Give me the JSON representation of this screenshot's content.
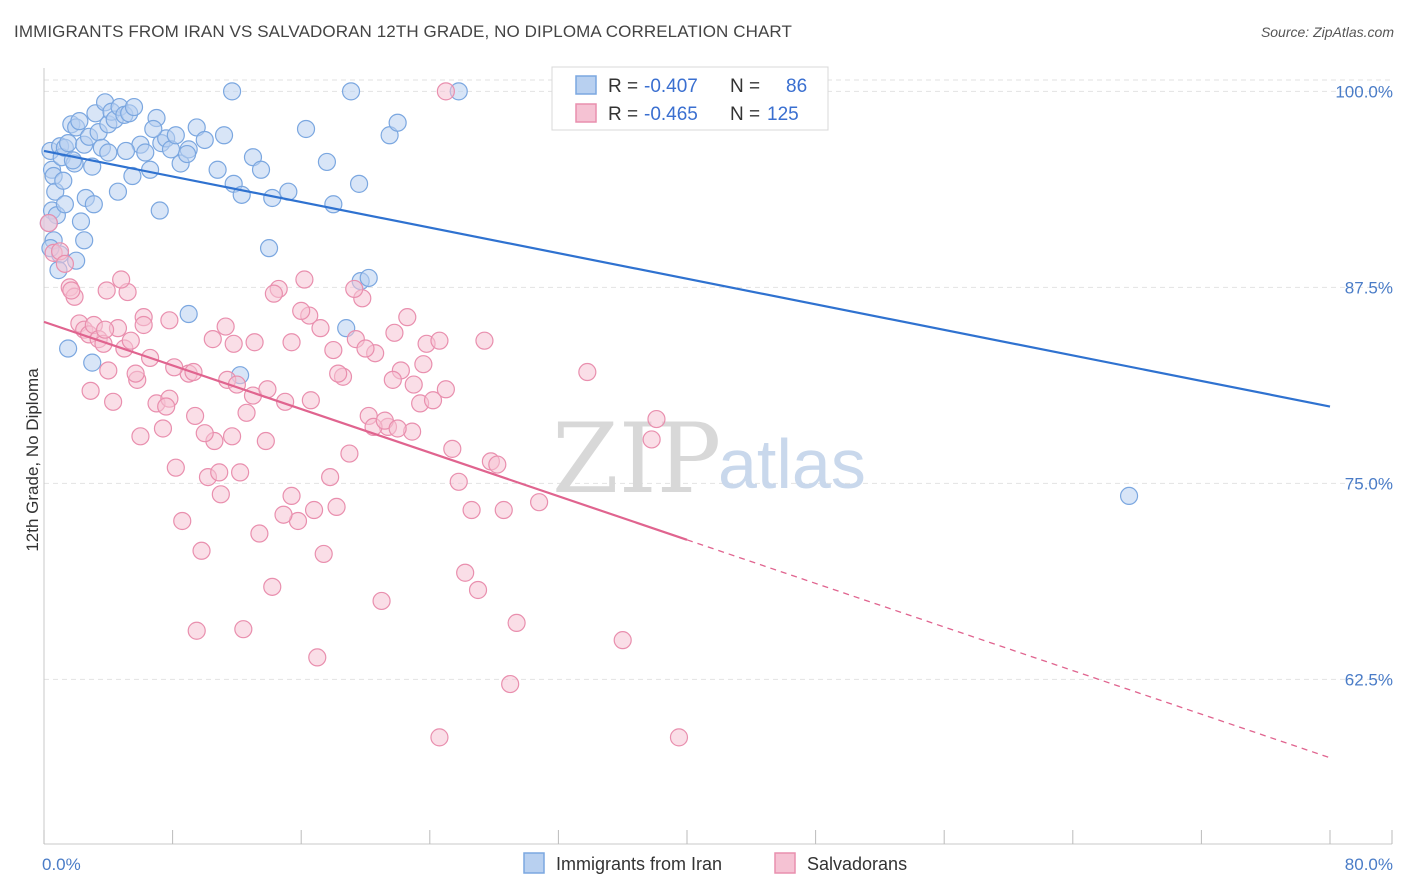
{
  "header": {
    "title": "IMMIGRANTS FROM IRAN VS SALVADORAN 12TH GRADE, NO DIPLOMA CORRELATION CHART",
    "source": "Source: ZipAtlas.com"
  },
  "watermark": {
    "zip": "ZIP",
    "atlas": "atlas"
  },
  "legend_top": {
    "rows": [
      {
        "r_label": "R =",
        "r_value": "-0.407",
        "n_label": "N =",
        "n_value": "86"
      },
      {
        "r_label": "R =",
        "r_value": "-0.465",
        "n_label": "N =",
        "n_value": "125"
      }
    ]
  },
  "chart_data": {
    "type": "scatter",
    "title": "IMMIGRANTS FROM IRAN VS SALVADORAN 12TH GRADE, NO DIPLOMA CORRELATION CHART",
    "xlabel": "",
    "ylabel": "12th Grade, No Diploma",
    "xlim": [
      0,
      80
    ],
    "ylim": [
      52,
      102
    ],
    "x_tick_labels": [
      "0.0%",
      "80.0%"
    ],
    "y_ticks": [
      62.5,
      75.0,
      87.5,
      100.0
    ],
    "y_tick_labels": [
      "62.5%",
      "75.0%",
      "87.5%",
      "100.0%"
    ],
    "grid": true,
    "legend_position": "top-center",
    "series": [
      {
        "name": "Immigrants from Iran",
        "color": "#7ba7e0",
        "fill": "#b8d0f0",
        "trend": {
          "x": [
            0,
            80
          ],
          "y": [
            96.2,
            79.9
          ],
          "style": "solid",
          "color": "#2f72d0"
        },
        "points": [
          [
            0.4,
            96.2
          ],
          [
            0.5,
            95.0
          ],
          [
            0.6,
            94.6
          ],
          [
            0.7,
            93.6
          ],
          [
            0.5,
            92.4
          ],
          [
            0.8,
            92.1
          ],
          [
            1.0,
            96.5
          ],
          [
            1.1,
            95.8
          ],
          [
            1.3,
            96.4
          ],
          [
            1.5,
            96.7
          ],
          [
            1.7,
            97.9
          ],
          [
            1.9,
            95.4
          ],
          [
            2.0,
            97.7
          ],
          [
            2.2,
            98.1
          ],
          [
            2.5,
            96.6
          ],
          [
            2.8,
            97.1
          ],
          [
            3.0,
            95.2
          ],
          [
            3.2,
            98.6
          ],
          [
            3.4,
            97.4
          ],
          [
            3.6,
            96.4
          ],
          [
            3.8,
            99.3
          ],
          [
            4.0,
            97.9
          ],
          [
            4.2,
            98.7
          ],
          [
            4.4,
            98.2
          ],
          [
            4.7,
            99.0
          ],
          [
            5.0,
            98.5
          ],
          [
            5.3,
            98.6
          ],
          [
            5.6,
            99.0
          ],
          [
            6.0,
            96.6
          ],
          [
            6.3,
            96.1
          ],
          [
            6.6,
            95.0
          ],
          [
            7.0,
            98.3
          ],
          [
            7.3,
            96.7
          ],
          [
            7.6,
            97.0
          ],
          [
            7.9,
            96.3
          ],
          [
            8.2,
            97.2
          ],
          [
            8.5,
            95.4
          ],
          [
            9.0,
            96.3
          ],
          [
            9.5,
            97.7
          ],
          [
            10.0,
            96.9
          ],
          [
            10.8,
            95.0
          ],
          [
            11.2,
            97.2
          ],
          [
            11.8,
            94.1
          ],
          [
            12.3,
            93.4
          ],
          [
            13.0,
            95.8
          ],
          [
            13.5,
            95.0
          ],
          [
            14.2,
            93.2
          ],
          [
            15.2,
            93.6
          ],
          [
            16.3,
            97.6
          ],
          [
            17.6,
            95.5
          ],
          [
            18.0,
            92.8
          ],
          [
            19.1,
            100.0
          ],
          [
            19.6,
            94.1
          ],
          [
            21.5,
            97.2
          ],
          [
            22.0,
            98.0
          ],
          [
            25.8,
            100.0
          ],
          [
            11.7,
            100.0
          ],
          [
            1.8,
            95.6
          ],
          [
            2.6,
            93.2
          ],
          [
            3.1,
            92.8
          ],
          [
            2.3,
            91.7
          ],
          [
            2.5,
            90.5
          ],
          [
            1.3,
            92.8
          ],
          [
            4.6,
            93.6
          ],
          [
            5.5,
            94.6
          ],
          [
            7.2,
            92.4
          ],
          [
            9.0,
            85.8
          ],
          [
            12.2,
            81.9
          ],
          [
            14.0,
            90.0
          ],
          [
            18.8,
            84.9
          ],
          [
            19.7,
            87.9
          ],
          [
            20.2,
            88.1
          ],
          [
            1.5,
            83.6
          ],
          [
            3.0,
            82.7
          ],
          [
            1.0,
            89.6
          ],
          [
            2.0,
            89.2
          ],
          [
            0.9,
            88.6
          ],
          [
            0.3,
            91.6
          ],
          [
            0.6,
            90.5
          ],
          [
            1.2,
            94.3
          ],
          [
            4.0,
            96.1
          ],
          [
            5.1,
            96.2
          ],
          [
            6.8,
            97.6
          ],
          [
            8.9,
            96.0
          ],
          [
            67.5,
            74.2
          ],
          [
            0.4,
            90.0
          ]
        ]
      },
      {
        "name": "Salvadorans",
        "color": "#e98fae",
        "fill": "#f5c2d3",
        "trend": {
          "x": [
            0,
            40
          ],
          "y": [
            85.3,
            71.4
          ],
          "style": "solid",
          "color": "#e0648f",
          "dash_x": [
            40,
            80
          ],
          "dash_y": [
            71.4,
            57.5
          ]
        },
        "points": [
          [
            0.3,
            91.6
          ],
          [
            0.6,
            89.7
          ],
          [
            1.0,
            89.8
          ],
          [
            1.3,
            89.0
          ],
          [
            1.6,
            87.5
          ],
          [
            1.9,
            86.9
          ],
          [
            2.2,
            85.2
          ],
          [
            2.5,
            84.8
          ],
          [
            2.8,
            84.5
          ],
          [
            3.1,
            85.1
          ],
          [
            3.4,
            84.2
          ],
          [
            3.7,
            83.9
          ],
          [
            4.0,
            82.2
          ],
          [
            4.3,
            80.2
          ],
          [
            4.6,
            84.9
          ],
          [
            5.0,
            83.6
          ],
          [
            5.4,
            84.1
          ],
          [
            5.8,
            81.6
          ],
          [
            6.2,
            85.6
          ],
          [
            6.6,
            83.0
          ],
          [
            7.0,
            80.1
          ],
          [
            7.4,
            78.5
          ],
          [
            7.8,
            80.4
          ],
          [
            8.2,
            76.0
          ],
          [
            8.6,
            72.6
          ],
          [
            9.0,
            82.0
          ],
          [
            9.4,
            79.3
          ],
          [
            9.8,
            70.7
          ],
          [
            10.2,
            75.4
          ],
          [
            10.6,
            77.7
          ],
          [
            11.0,
            74.3
          ],
          [
            11.4,
            81.6
          ],
          [
            11.8,
            83.9
          ],
          [
            12.2,
            75.7
          ],
          [
            12.6,
            79.5
          ],
          [
            13.0,
            80.6
          ],
          [
            13.4,
            71.8
          ],
          [
            13.8,
            77.7
          ],
          [
            14.2,
            68.4
          ],
          [
            14.6,
            87.4
          ],
          [
            15.0,
            80.2
          ],
          [
            15.4,
            74.2
          ],
          [
            15.8,
            72.6
          ],
          [
            16.2,
            88.0
          ],
          [
            16.6,
            80.3
          ],
          [
            17.0,
            63.9
          ],
          [
            17.4,
            70.5
          ],
          [
            17.8,
            75.4
          ],
          [
            18.2,
            73.5
          ],
          [
            18.6,
            81.8
          ],
          [
            19.0,
            76.9
          ],
          [
            19.4,
            84.2
          ],
          [
            19.8,
            86.8
          ],
          [
            20.2,
            79.3
          ],
          [
            20.6,
            83.3
          ],
          [
            21.0,
            67.5
          ],
          [
            21.4,
            78.6
          ],
          [
            21.8,
            84.6
          ],
          [
            22.2,
            82.2
          ],
          [
            22.6,
            85.6
          ],
          [
            23.0,
            81.3
          ],
          [
            23.4,
            80.1
          ],
          [
            23.8,
            83.9
          ],
          [
            24.2,
            80.3
          ],
          [
            24.6,
            84.1
          ],
          [
            25.0,
            81.0
          ],
          [
            25.4,
            77.2
          ],
          [
            25.8,
            75.1
          ],
          [
            26.2,
            69.3
          ],
          [
            26.6,
            73.3
          ],
          [
            27.0,
            68.2
          ],
          [
            27.4,
            84.1
          ],
          [
            27.8,
            76.4
          ],
          [
            28.2,
            76.2
          ],
          [
            28.6,
            73.3
          ],
          [
            29.0,
            62.2
          ],
          [
            29.4,
            66.1
          ],
          [
            30.8,
            73.8
          ],
          [
            33.8,
            82.1
          ],
          [
            36.0,
            65.0
          ],
          [
            37.8,
            77.8
          ],
          [
            38.1,
            79.1
          ],
          [
            39.5,
            58.8
          ],
          [
            25.0,
            100.0
          ],
          [
            24.6,
            58.8
          ],
          [
            3.8,
            84.8
          ],
          [
            5.2,
            87.2
          ],
          [
            6.2,
            85.1
          ],
          [
            7.8,
            85.4
          ],
          [
            9.3,
            82.1
          ],
          [
            10.5,
            84.2
          ],
          [
            11.3,
            85.0
          ],
          [
            12.0,
            81.3
          ],
          [
            13.1,
            84.0
          ],
          [
            14.3,
            87.1
          ],
          [
            15.4,
            84.0
          ],
          [
            16.5,
            85.7
          ],
          [
            17.2,
            84.9
          ],
          [
            18.0,
            83.5
          ],
          [
            19.3,
            87.4
          ],
          [
            20.5,
            78.6
          ],
          [
            21.7,
            81.6
          ],
          [
            22.9,
            78.3
          ],
          [
            23.6,
            82.6
          ],
          [
            4.8,
            88.0
          ],
          [
            6.0,
            78.0
          ],
          [
            8.1,
            82.4
          ],
          [
            10.0,
            78.2
          ],
          [
            11.7,
            78.0
          ],
          [
            13.9,
            81.0
          ],
          [
            16.0,
            86.0
          ],
          [
            18.3,
            82.0
          ],
          [
            20.0,
            83.6
          ],
          [
            21.2,
            79.0
          ],
          [
            2.9,
            80.9
          ],
          [
            3.9,
            87.3
          ],
          [
            5.7,
            82.0
          ],
          [
            7.6,
            79.9
          ],
          [
            9.5,
            65.6
          ],
          [
            10.9,
            75.7
          ],
          [
            12.4,
            65.7
          ],
          [
            14.9,
            73.0
          ],
          [
            16.8,
            73.3
          ],
          [
            22.0,
            78.5
          ],
          [
            1.7,
            87.3
          ]
        ]
      }
    ]
  },
  "legend_bottom": {
    "items": [
      "Immigrants from Iran",
      "Salvadorans"
    ]
  },
  "colors": {
    "blue_line": "#2f72d0",
    "pink_line": "#e0648f",
    "grid": "#e2e2e2",
    "tick_label": "#4a7cc7"
  }
}
